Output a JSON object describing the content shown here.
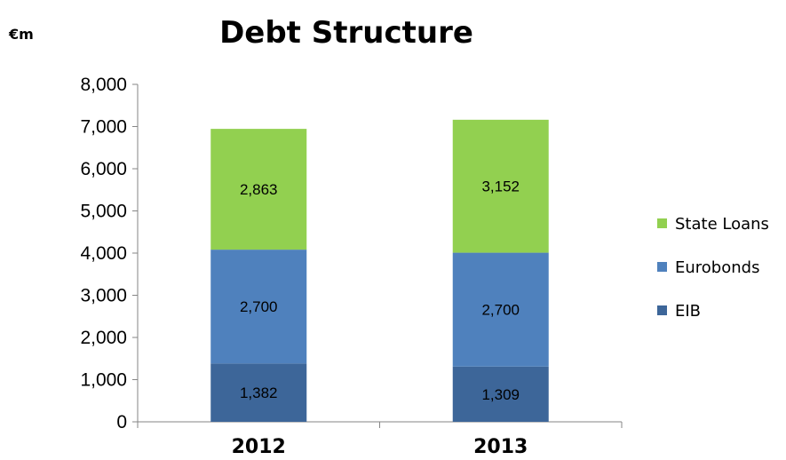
{
  "chart_data": {
    "type": "bar",
    "stacked": true,
    "title": "Debt Structure",
    "unit_label": "€m",
    "categories": [
      "2012",
      "2013"
    ],
    "series": [
      {
        "name": "EIB",
        "color": "#3d6699",
        "values": [
          1382,
          1309
        ],
        "labels": [
          "1,382",
          "1,309"
        ]
      },
      {
        "name": "Eurobonds",
        "color": "#4f81bd",
        "values": [
          2700,
          2700
        ],
        "labels": [
          "2,700",
          "2,700"
        ]
      },
      {
        "name": "State Loans",
        "color": "#92d050",
        "values": [
          2863,
          3152
        ],
        "labels": [
          "2,863",
          "3,152"
        ]
      }
    ],
    "ylim": [
      0,
      8000
    ],
    "yticks": [
      0,
      1000,
      2000,
      3000,
      4000,
      5000,
      6000,
      7000,
      8000
    ],
    "ytick_labels": [
      "0",
      "1,000",
      "2,000",
      "3,000",
      "4,000",
      "5,000",
      "6,000",
      "7,000",
      "8,000"
    ],
    "legend_position": "right",
    "legend_order": [
      "State Loans",
      "Eurobonds",
      "EIB"
    ],
    "grid": false
  }
}
